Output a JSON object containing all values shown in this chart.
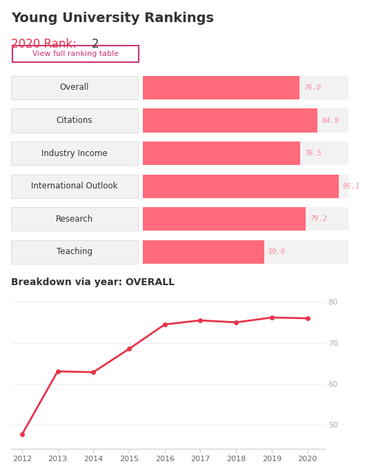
{
  "title": "Young University Rankings",
  "rank_label": "2020 Rank: ",
  "rank_value": "2",
  "button_text": "View full ranking table",
  "bar_categories": [
    "Overall",
    "Citations",
    "Industry Income",
    "International Outlook",
    "Research",
    "Teaching"
  ],
  "bar_values": [
    76.0,
    84.9,
    76.5,
    95.1,
    79.2,
    59.0
  ],
  "bar_color": "#FF6B7A",
  "bar_label_color": "#FF8899",
  "bar_bg_color": "#F2F2F2",
  "bar_border_color": "#DDDDDD",
  "bar_max": 100,
  "line_title": "Breakdown via year: OVERALL",
  "line_years": [
    2012,
    2013,
    2014,
    2015,
    2016,
    2017,
    2018,
    2019,
    2020
  ],
  "line_values": [
    47.5,
    63.0,
    62.8,
    68.5,
    74.5,
    75.5,
    75.0,
    76.2,
    76.0
  ],
  "line_color": "#E8334A",
  "line_yticks": [
    50,
    60,
    70,
    80
  ],
  "title_color": "#333333",
  "rank_label_color": "#E8334A",
  "rank_value_color": "#333333",
  "button_color": "#CC3377",
  "bg_color": "#FFFFFF"
}
